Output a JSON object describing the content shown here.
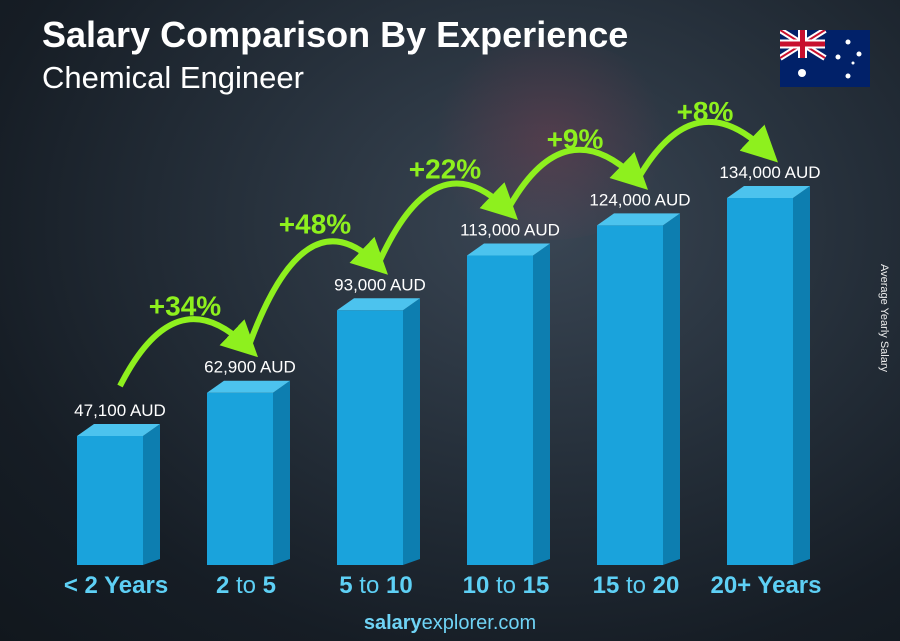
{
  "header": {
    "title": "Salary Comparison By Experience",
    "subtitle": "Chemical Engineer"
  },
  "footer": {
    "brand_bold": "salary",
    "brand_rest": "explorer",
    "brand_tld": ".com"
  },
  "colors": {
    "bar_front": "#1aa3dc",
    "bar_side": "#0d7eb0",
    "bar_top": "#4cc3ee",
    "pct": "#8ef01e",
    "category": "#5ed0f5"
  },
  "chart_data": {
    "type": "bar",
    "title": "Salary Comparison By Experience",
    "ylabel": "Average Yearly Salary",
    "categories": [
      {
        "a": "< 2 Years",
        "mid": "",
        "b": ""
      },
      {
        "a": "2",
        "mid": " to ",
        "b": "5"
      },
      {
        "a": "5",
        "mid": " to ",
        "b": "10"
      },
      {
        "a": "10",
        "mid": " to ",
        "b": "15"
      },
      {
        "a": "15",
        "mid": " to ",
        "b": "20"
      },
      {
        "a": "20+ Years",
        "mid": "",
        "b": ""
      }
    ],
    "values": [
      47100,
      62900,
      93000,
      113000,
      124000,
      134000
    ],
    "value_labels": [
      "47,100 AUD",
      "62,900 AUD",
      "93,000 AUD",
      "113,000 AUD",
      "124,000 AUD",
      "134,000 AUD"
    ],
    "changes": [
      "+34%",
      "+48%",
      "+22%",
      "+9%",
      "+8%"
    ],
    "unit": "AUD"
  }
}
